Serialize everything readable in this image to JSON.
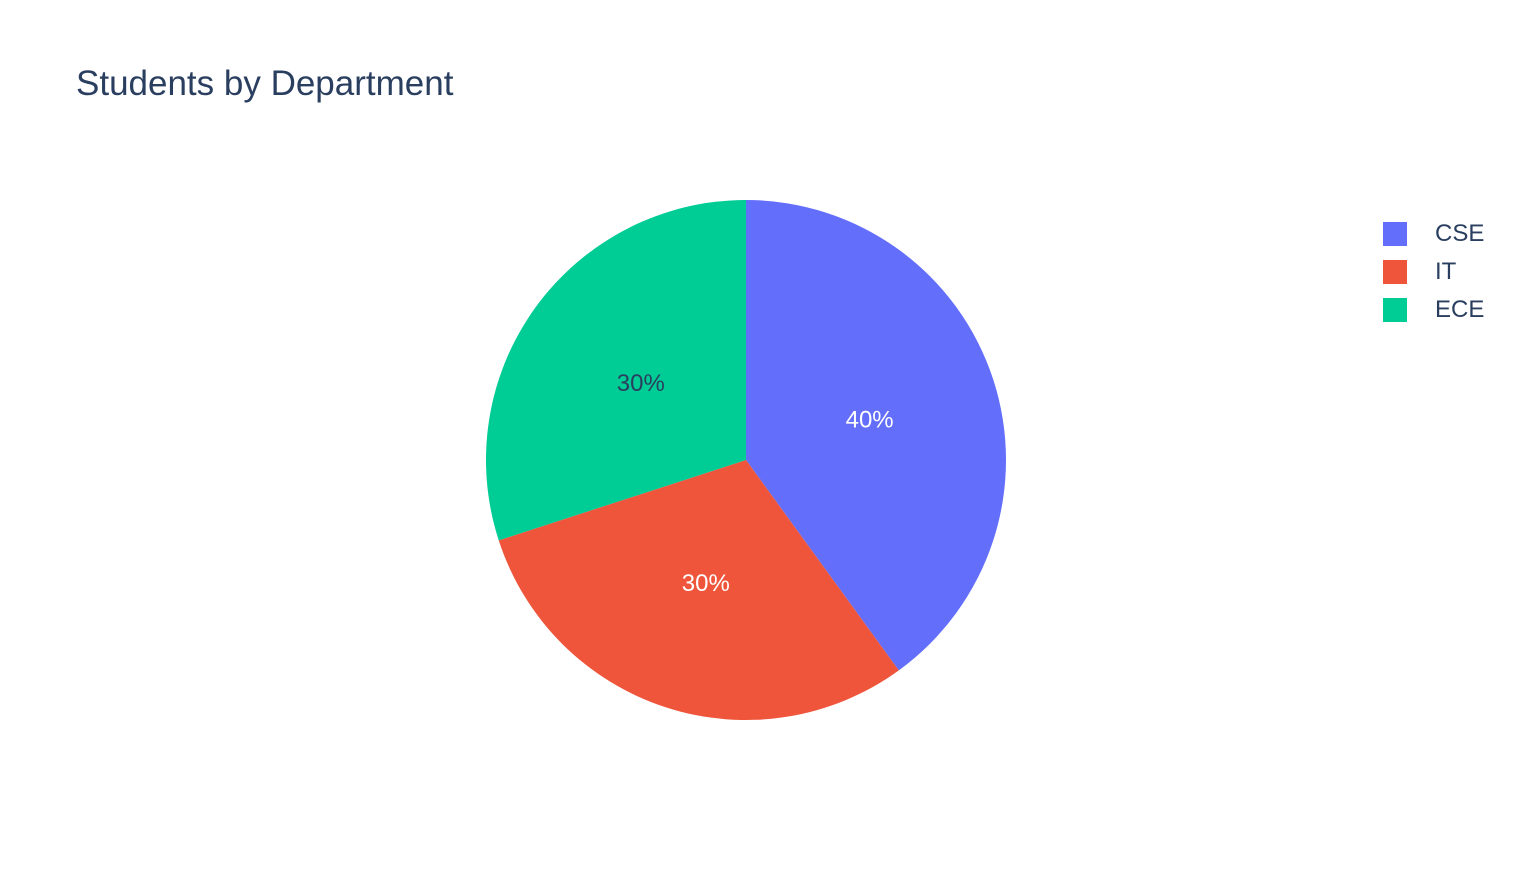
{
  "chart_data": {
    "type": "pie",
    "title": "Students by Department",
    "categories": [
      "CSE",
      "IT",
      "ECE"
    ],
    "values": [
      40,
      30,
      30
    ],
    "labels": [
      "40%",
      "30%",
      "30%"
    ],
    "colors": [
      "#636efa",
      "#ef553b",
      "#00cc96"
    ],
    "label_colors": [
      "#ffffff",
      "#ffffff",
      "#2a3f5f"
    ],
    "legend_position": "top-right",
    "direction": "clockwise",
    "start": "top"
  }
}
